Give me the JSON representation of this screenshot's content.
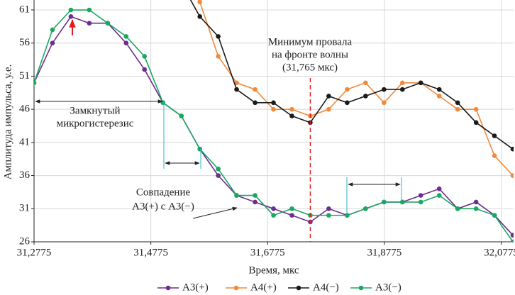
{
  "chart_data": {
    "type": "line",
    "xlabel": "Время, мкс",
    "ylabel": "Амплитуда импульса, у.е.",
    "x": [
      31.2775,
      31.309,
      31.3406,
      31.3721,
      31.4037,
      31.4352,
      31.4667,
      31.4983,
      31.5298,
      31.5614,
      31.5929,
      31.6244,
      31.656,
      31.6875,
      31.7191,
      31.7506,
      31.7821,
      31.8137,
      31.8452,
      31.8768,
      31.9083,
      31.9398,
      31.9714,
      32.0029,
      32.0345,
      32.066,
      32.0975
    ],
    "xlim": [
      31.2775,
      32.0987
    ],
    "ylim": [
      26,
      62.5
    ],
    "xticks": [
      {
        "value": 31.2775,
        "label": "31,2775"
      },
      {
        "value": 31.4775,
        "label": "31,4775"
      },
      {
        "value": 31.6775,
        "label": "31,6775"
      },
      {
        "value": 31.8775,
        "label": "31,8775"
      },
      {
        "value": 32.0775,
        "label": "32,0775"
      }
    ],
    "yticks": [
      26,
      31,
      36,
      41,
      46,
      51,
      56,
      61
    ],
    "grid": true,
    "series": [
      {
        "name": "А3(+)",
        "color": "#6b2d8f",
        "values": [
          50,
          56,
          60,
          59,
          59,
          56,
          52,
          47,
          45,
          40,
          36,
          33,
          32,
          31,
          30,
          29,
          31,
          30,
          31,
          32,
          32,
          33,
          34,
          31,
          32,
          30,
          27
        ]
      },
      {
        "name": "А4(+)",
        "color": "#f08a3c",
        "values": [
          null,
          null,
          null,
          null,
          null,
          null,
          null,
          null,
          66,
          62.2,
          54,
          50,
          49,
          46,
          46,
          45,
          46,
          49,
          50,
          47,
          50,
          50,
          48,
          46,
          46,
          39,
          36
        ]
      },
      {
        "name": "А4(−)",
        "color": "#1a1a1a",
        "values": [
          null,
          null,
          null,
          null,
          null,
          null,
          null,
          null,
          65,
          60,
          57,
          49,
          47,
          47,
          45,
          44,
          48,
          47,
          48,
          49,
          49,
          50,
          49,
          47,
          44,
          42,
          40
        ]
      },
      {
        "name": "А3(−)",
        "color": "#1aa860",
        "values": [
          50,
          58,
          61,
          61,
          59,
          57,
          54,
          47,
          45,
          40,
          37,
          33,
          33,
          30,
          31,
          30,
          30,
          30,
          31,
          32,
          32,
          32,
          33,
          31,
          31,
          30,
          26
        ]
      }
    ],
    "marker_x": 31.7506,
    "annotations": [
      "Минимум провала",
      "на фронте волны",
      "(31,765 мкс)",
      "Замкнутый",
      "микрогистерезис",
      "Совпадение",
      "А3(+) с А3(−)"
    ],
    "legend": "bottom"
  }
}
